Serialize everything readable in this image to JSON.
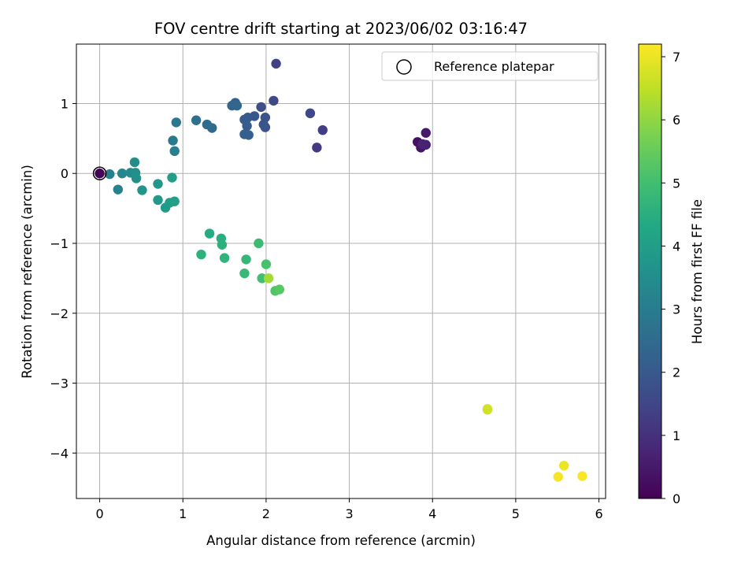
{
  "chart_data": {
    "type": "scatter",
    "title": "FOV centre drift starting at 2023/06/02 03:16:47",
    "xlabel": "Angular distance from reference (arcmin)",
    "ylabel": "Rotation from reference (arcmin)",
    "xlim": [
      -0.28,
      6.08
    ],
    "ylim": [
      -4.65,
      1.85
    ],
    "xticks": [
      0,
      1,
      2,
      3,
      4,
      5,
      6
    ],
    "yticks": [
      -4,
      -3,
      -2,
      -1,
      0,
      1
    ],
    "grid": true,
    "legend": {
      "placement": "top-right",
      "label": "Reference platepar"
    },
    "reference_point": {
      "x": 0,
      "y": 0
    },
    "colorbar": {
      "label": "Hours from first FF file",
      "range": [
        0,
        7.2
      ],
      "ticks": [
        0,
        1,
        2,
        3,
        4,
        5,
        6,
        7
      ],
      "colormap": "viridis"
    },
    "points": [
      {
        "x": 0.0,
        "y": 0.0,
        "h": 0.05
      },
      {
        "x": 3.82,
        "y": 0.45,
        "h": 0.3
      },
      {
        "x": 3.86,
        "y": 0.37,
        "h": 0.4
      },
      {
        "x": 3.92,
        "y": 0.58,
        "h": 0.5
      },
      {
        "x": 3.92,
        "y": 0.41,
        "h": 0.6
      },
      {
        "x": 3.88,
        "y": 0.42,
        "h": 0.7
      },
      {
        "x": 2.61,
        "y": 0.37,
        "h": 1.2
      },
      {
        "x": 2.68,
        "y": 0.62,
        "h": 1.3
      },
      {
        "x": 2.12,
        "y": 1.57,
        "h": 1.4
      },
      {
        "x": 2.53,
        "y": 0.86,
        "h": 1.55
      },
      {
        "x": 2.09,
        "y": 1.04,
        "h": 1.6
      },
      {
        "x": 1.94,
        "y": 0.95,
        "h": 1.7
      },
      {
        "x": 1.99,
        "y": 0.8,
        "h": 1.8
      },
      {
        "x": 1.99,
        "y": 0.66,
        "h": 1.85
      },
      {
        "x": 1.97,
        "y": 0.7,
        "h": 1.9
      },
      {
        "x": 1.86,
        "y": 0.82,
        "h": 1.95
      },
      {
        "x": 1.78,
        "y": 0.8,
        "h": 2.0
      },
      {
        "x": 1.74,
        "y": 0.77,
        "h": 2.05
      },
      {
        "x": 1.77,
        "y": 0.68,
        "h": 2.1
      },
      {
        "x": 1.74,
        "y": 0.56,
        "h": 2.15
      },
      {
        "x": 1.79,
        "y": 0.55,
        "h": 2.2
      },
      {
        "x": 1.63,
        "y": 1.01,
        "h": 2.25
      },
      {
        "x": 1.59,
        "y": 0.97,
        "h": 2.3
      },
      {
        "x": 1.65,
        "y": 0.97,
        "h": 2.35
      },
      {
        "x": 1.35,
        "y": 0.65,
        "h": 2.45
      },
      {
        "x": 1.29,
        "y": 0.7,
        "h": 2.55
      },
      {
        "x": 1.16,
        "y": 0.76,
        "h": 2.65
      },
      {
        "x": 0.92,
        "y": 0.73,
        "h": 2.85
      },
      {
        "x": 0.88,
        "y": 0.47,
        "h": 2.95
      },
      {
        "x": 0.9,
        "y": 0.32,
        "h": 3.05
      },
      {
        "x": 0.12,
        "y": -0.01,
        "h": 3.1
      },
      {
        "x": 0.22,
        "y": -0.23,
        "h": 3.2
      },
      {
        "x": 0.27,
        "y": 0.0,
        "h": 3.3
      },
      {
        "x": 0.37,
        "y": 0.01,
        "h": 3.4
      },
      {
        "x": 0.42,
        "y": 0.16,
        "h": 3.5
      },
      {
        "x": 0.43,
        "y": 0.01,
        "h": 3.55
      },
      {
        "x": 0.44,
        "y": -0.07,
        "h": 3.6
      },
      {
        "x": 0.51,
        "y": -0.24,
        "h": 3.7
      },
      {
        "x": 0.7,
        "y": -0.15,
        "h": 3.8
      },
      {
        "x": 0.7,
        "y": -0.38,
        "h": 3.85
      },
      {
        "x": 0.79,
        "y": -0.49,
        "h": 3.9
      },
      {
        "x": 0.84,
        "y": -0.42,
        "h": 3.95
      },
      {
        "x": 0.87,
        "y": -0.06,
        "h": 4.0
      },
      {
        "x": 0.9,
        "y": -0.4,
        "h": 4.05
      },
      {
        "x": 1.32,
        "y": -0.86,
        "h": 4.4
      },
      {
        "x": 1.46,
        "y": -0.93,
        "h": 4.5
      },
      {
        "x": 1.47,
        "y": -1.02,
        "h": 4.55
      },
      {
        "x": 1.22,
        "y": -1.16,
        "h": 4.6
      },
      {
        "x": 1.5,
        "y": -1.21,
        "h": 4.65
      },
      {
        "x": 1.76,
        "y": -1.23,
        "h": 4.75
      },
      {
        "x": 1.74,
        "y": -1.43,
        "h": 4.8
      },
      {
        "x": 1.91,
        "y": -1.0,
        "h": 4.9
      },
      {
        "x": 1.95,
        "y": -1.5,
        "h": 5.0
      },
      {
        "x": 2.0,
        "y": -1.3,
        "h": 5.1
      },
      {
        "x": 2.11,
        "y": -1.68,
        "h": 5.2
      },
      {
        "x": 2.16,
        "y": -1.66,
        "h": 5.3
      },
      {
        "x": 2.03,
        "y": -1.5,
        "h": 6.2
      },
      {
        "x": 4.66,
        "y": -3.38,
        "h": 6.6
      },
      {
        "x": 4.66,
        "y": -3.37,
        "h": 6.7
      },
      {
        "x": 5.58,
        "y": -4.18,
        "h": 7.0
      },
      {
        "x": 5.51,
        "y": -4.34,
        "h": 7.1
      },
      {
        "x": 5.8,
        "y": -4.33,
        "h": 7.15
      }
    ]
  },
  "colors": {
    "grid": "#b0b0b0",
    "axis": "#000000"
  }
}
